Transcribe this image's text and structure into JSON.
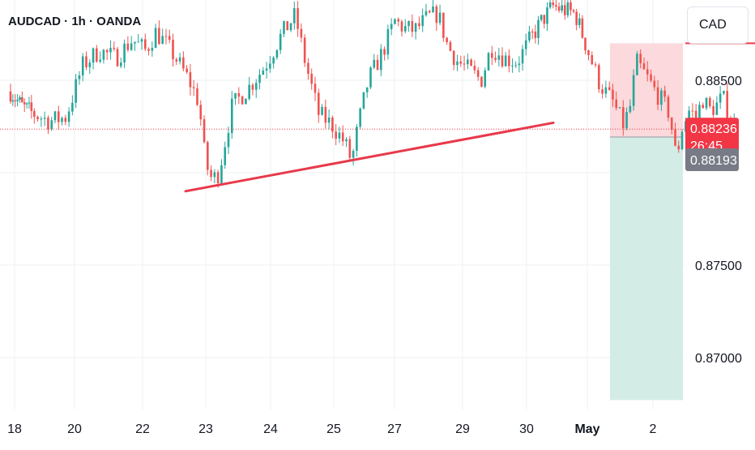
{
  "header": {
    "title": "AUDCAD · 1h · OANDA"
  },
  "currency_button": {
    "label": "CAD"
  },
  "price_badge": {
    "price": "0.88236",
    "countdown": "26:45"
  },
  "secondary_badge": {
    "price": "0.88193"
  },
  "colors": {
    "up": "#26a69a",
    "down": "#ef5350",
    "trendline": "#e8394a",
    "stop_zone": "#fbd9dc",
    "target_zone": "#d3ece6",
    "badge_red": "#f23645",
    "badge_gray": "#787b86",
    "grid": "#eef0f3"
  },
  "chart_data": {
    "type": "candlestick",
    "symbol": "AUDCAD",
    "interval": "1h",
    "source": "OANDA",
    "y_ticks": [
      "0.88500",
      "0.87500",
      "0.87000"
    ],
    "x_ticks": [
      "18",
      "20",
      "22",
      "23",
      "24",
      "25",
      "27",
      "29",
      "30",
      "May",
      "2"
    ],
    "ylim": [
      0.8675,
      0.8895
    ],
    "last_price": 0.88236,
    "secondary_price": 0.88193,
    "trendline": {
      "from": {
        "x": "Apr 22 ~20:00",
        "y": 0.879
      },
      "to": {
        "x": "Apr 30 ~08:00",
        "y": 0.8827
      }
    },
    "position": {
      "type": "short",
      "entry": 0.88193,
      "stop": 0.887,
      "target": 0.8677
    },
    "price_path": [
      [
        0,
        0.8844
      ],
      [
        0.5,
        0.8836
      ],
      [
        1.0,
        0.8832
      ],
      [
        1.5,
        0.8828
      ],
      [
        2.0,
        0.883
      ],
      [
        2.5,
        0.8858
      ],
      [
        3.0,
        0.8866
      ],
      [
        3.5,
        0.8862
      ],
      [
        4.0,
        0.8872
      ],
      [
        4.4,
        0.8866
      ],
      [
        4.7,
        0.8876
      ],
      [
        5.0,
        0.887
      ],
      [
        5.3,
        0.8862
      ],
      [
        5.7,
        0.885
      ],
      [
        6.0,
        0.8838
      ],
      [
        6.2,
        0.8805
      ],
      [
        6.4,
        0.8796
      ],
      [
        6.6,
        0.88
      ],
      [
        7.0,
        0.8836
      ],
      [
        7.5,
        0.8846
      ],
      [
        8.0,
        0.8858
      ],
      [
        8.5,
        0.8875
      ],
      [
        8.9,
        0.8885
      ],
      [
        9.2,
        0.886
      ],
      [
        9.6,
        0.8832
      ],
      [
        10.0,
        0.8826
      ],
      [
        10.4,
        0.8816
      ],
      [
        10.6,
        0.8806
      ],
      [
        10.8,
        0.8826
      ],
      [
        11.1,
        0.885
      ],
      [
        11.5,
        0.8864
      ],
      [
        11.9,
        0.8882
      ],
      [
        12.2,
        0.8878
      ],
      [
        12.5,
        0.8877
      ],
      [
        12.9,
        0.8884
      ],
      [
        13.2,
        0.8886
      ],
      [
        13.5,
        0.8868
      ],
      [
        13.8,
        0.886
      ],
      [
        14.1,
        0.8856
      ],
      [
        14.5,
        0.885
      ],
      [
        14.8,
        0.8868
      ],
      [
        15.2,
        0.8862
      ],
      [
        15.6,
        0.886
      ],
      [
        16.0,
        0.8872
      ],
      [
        16.4,
        0.8882
      ],
      [
        16.8,
        0.889
      ],
      [
        17.2,
        0.8888
      ],
      [
        17.6,
        0.8886
      ],
      [
        18.0,
        0.8868
      ],
      [
        18.4,
        0.8848
      ],
      [
        18.8,
        0.8838
      ],
      [
        19.1,
        0.8826
      ],
      [
        19.3,
        0.8834
      ],
      [
        19.5,
        0.886
      ],
      [
        19.8,
        0.8852
      ],
      [
        20.0,
        0.8846
      ],
      [
        20.3,
        0.8838
      ],
      [
        20.5,
        0.8832
      ],
      [
        20.7,
        0.8808
      ],
      [
        20.9,
        0.8826
      ],
      [
        21.1,
        0.8834
      ],
      [
        21.3,
        0.883
      ],
      [
        21.5,
        0.884
      ],
      [
        21.7,
        0.8834
      ],
      [
        21.9,
        0.8836
      ],
      [
        22.1,
        0.8841
      ],
      [
        22.3,
        0.883
      ],
      [
        22.55,
        0.88236
      ]
    ]
  }
}
